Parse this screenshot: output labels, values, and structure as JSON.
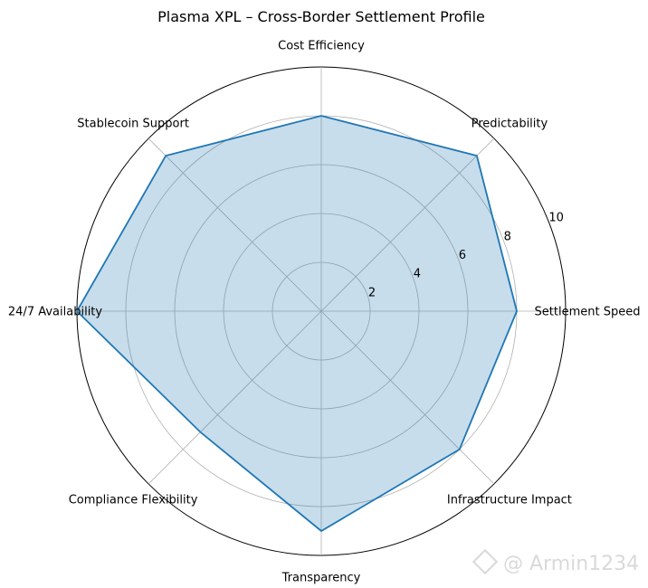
{
  "chart_data": {
    "type": "radar",
    "title": "Plasma XPL – Cross-Border Settlement Profile",
    "categories": [
      "Settlement Speed",
      "Predictability",
      "Cost Efficiency",
      "Stablecoin Support",
      "24/7 Availability",
      "Compliance Flexibility",
      "Transparency",
      "Infrastructure Impact"
    ],
    "values": [
      8,
      9,
      8,
      9,
      10,
      7,
      9,
      8
    ],
    "rlim": [
      0,
      10
    ],
    "rticks": [
      2,
      4,
      6,
      8,
      10
    ],
    "grid": true,
    "colors": {
      "line": "#1f77b4",
      "fill": "#1f77b4",
      "grid": "#b0b0b0"
    }
  },
  "watermark": {
    "text": "@ Armin1234"
  }
}
